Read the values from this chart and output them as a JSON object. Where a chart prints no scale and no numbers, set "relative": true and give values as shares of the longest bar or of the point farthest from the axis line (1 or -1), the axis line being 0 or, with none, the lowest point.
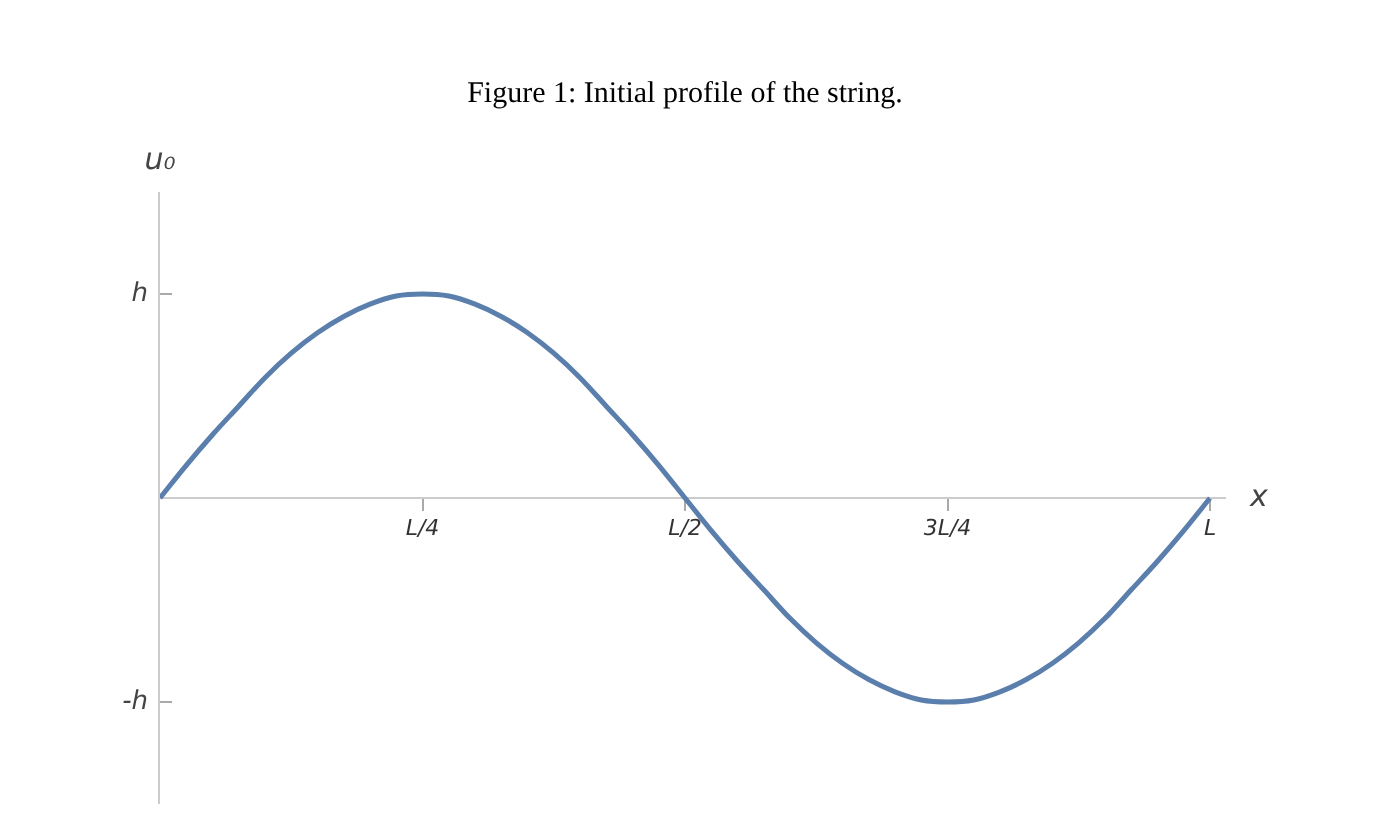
{
  "chart_data": {
    "type": "line",
    "title": "Figure 1: Initial profile of the string.",
    "xlabel": "x",
    "ylabel": "u₀",
    "relative": true,
    "categories": [
      null,
      null,
      null,
      null,
      null,
      null,
      null,
      null,
      null,
      null,
      "L/4",
      null,
      null,
      null,
      null,
      null,
      null,
      null,
      null,
      null,
      "L/2",
      null,
      null,
      null,
      null,
      null,
      null,
      null,
      null,
      null,
      "3L/4",
      null,
      null,
      null,
      null,
      null,
      null,
      null,
      null,
      null,
      "L"
    ],
    "series": [
      {
        "color": "#5b7fad",
        "values": [
          0,
          0.16,
          0.31,
          0.45,
          0.59,
          0.71,
          0.81,
          0.89,
          0.95,
          0.99,
          1,
          0.99,
          0.95,
          0.89,
          0.81,
          0.71,
          0.59,
          0.45,
          0.31,
          0.16,
          0,
          -0.16,
          -0.31,
          -0.45,
          -0.59,
          -0.71,
          -0.81,
          -0.89,
          -0.95,
          -0.99,
          -1,
          -0.99,
          -0.95,
          -0.89,
          -0.81,
          -0.71,
          -0.59,
          -0.45,
          -0.31,
          -0.16,
          0
        ]
      }
    ],
    "annotations": [
      "h",
      "-h"
    ],
    "grid": false,
    "legend": false,
    "marker": "none",
    "line_style": "solid"
  }
}
